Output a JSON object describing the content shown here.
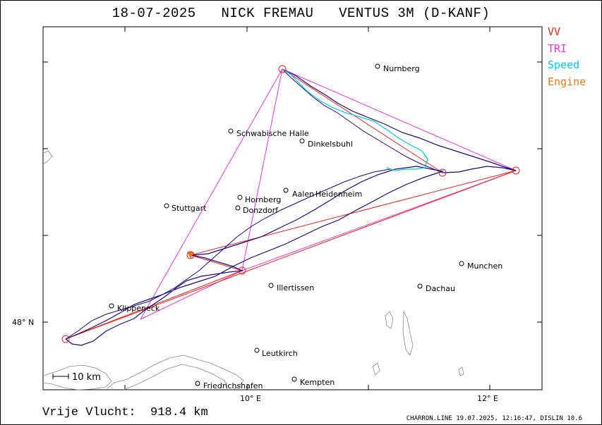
{
  "header": {
    "date": "18-07-2025",
    "pilot": "NICK FREMAU",
    "glider": "VENTUS 3M (D-KANF)"
  },
  "legend": [
    {
      "label": "VV",
      "color": "#e8231c"
    },
    {
      "label": "TRI",
      "color": "#e23ae2"
    },
    {
      "label": "Speed",
      "color": "#00c8e6"
    },
    {
      "label": "Engine",
      "color": "#e87a14"
    }
  ],
  "map": {
    "axes": {
      "lat_label": "48° N",
      "lon_labels": [
        "10° E",
        "12° E"
      ]
    },
    "scale_label": "10 km",
    "cities": [
      "Nurnberg",
      "Schwabische Halle",
      "Dinkelsbuhl",
      "Aalen",
      "Heidenheim",
      "Hornberg",
      "Donzdorf",
      "Stuttgart",
      "Munchen",
      "Illertissen",
      "Dachau",
      "Klippeneck",
      "Leutkirch",
      "Friedrichshafen",
      "Kempten"
    ],
    "track_color": "#1a0a7a",
    "speed_color": "#00c8e6",
    "turnpoint_color": "#e8231c"
  },
  "footer": {
    "free_flight_label": "Vrije Vlucht:",
    "free_flight_distance": "918.4 km",
    "software_info": "CHARRON.LINE 19.07.2025, 12:16:47, DISLIN 10.6"
  }
}
